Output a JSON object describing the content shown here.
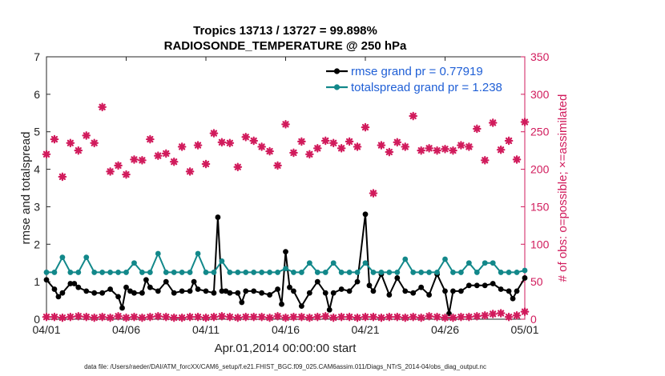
{
  "chart_data": {
    "type": "line",
    "title_line1": "Tropics 13713 / 13727 = 99.898%",
    "title_line2": "RADIOSONDE_TEMPERATURE @ 250 hPa",
    "xlabel": "Apr.01,2014 00:00:00 start",
    "ylabel_left": "rmse and totalspread",
    "ylabel_right": "# of obs: o=possible; ×=assimilated",
    "xlim": [
      0,
      30
    ],
    "ylim_left": [
      0,
      7
    ],
    "ylim_right": [
      0,
      350
    ],
    "x_ticks": [
      {
        "value": 0,
        "label": "04/01"
      },
      {
        "value": 5,
        "label": "04/06"
      },
      {
        "value": 10,
        "label": "04/11"
      },
      {
        "value": 15,
        "label": "04/16"
      },
      {
        "value": 20,
        "label": "04/21"
      },
      {
        "value": 25,
        "label": "04/26"
      },
      {
        "value": 30,
        "label": "05/01"
      }
    ],
    "y_ticks_left": [
      "0",
      "1",
      "2",
      "3",
      "4",
      "5",
      "6",
      "7"
    ],
    "y_ticks_right": [
      "0",
      "50",
      "100",
      "150",
      "200",
      "250",
      "300",
      "350"
    ],
    "series": [
      {
        "name": "rmse grand pr = 0.77919",
        "color": "#000000",
        "axis": "left",
        "x": [
          0,
          0.5,
          0.75,
          1,
          1.5,
          1.75,
          2,
          2.5,
          3,
          3.5,
          4,
          4.5,
          4.75,
          5,
          5.25,
          5.5,
          6,
          6.25,
          6.5,
          7,
          7.5,
          8,
          8.5,
          9,
          9.25,
          9.5,
          10,
          10.5,
          10.75,
          11,
          11.25,
          11.5,
          12,
          12.25,
          12.5,
          13,
          13.5,
          14,
          14.5,
          14.75,
          15,
          15.25,
          15.5,
          16,
          16.5,
          17,
          17.5,
          17.75,
          18,
          18.5,
          19,
          19.5,
          20,
          20.25,
          20.5,
          21,
          21.5,
          22,
          22.5,
          23,
          23.5,
          24,
          24.5,
          25,
          25.25,
          25.5,
          26,
          26.5,
          27,
          27.5,
          28,
          28.5,
          29,
          29.25,
          29.5,
          30
        ],
        "values": [
          1.05,
          0.8,
          0.6,
          0.7,
          0.95,
          0.95,
          0.85,
          0.75,
          0.7,
          0.7,
          0.8,
          0.6,
          0.3,
          0.85,
          0.75,
          0.7,
          0.7,
          1.05,
          0.85,
          0.75,
          1.0,
          0.7,
          0.75,
          0.75,
          1.0,
          0.8,
          0.75,
          0.7,
          2.72,
          0.75,
          0.75,
          0.7,
          0.7,
          0.45,
          0.75,
          0.75,
          0.7,
          0.65,
          0.8,
          0.4,
          1.8,
          0.85,
          0.75,
          0.35,
          0.7,
          1.0,
          0.7,
          0.25,
          0.7,
          0.8,
          0.75,
          1.0,
          2.8,
          0.9,
          0.75,
          1.2,
          0.65,
          1.1,
          0.75,
          0.7,
          0.85,
          0.65,
          1.2,
          0.75,
          0.15,
          0.75,
          0.75,
          0.9,
          0.9,
          0.9,
          0.95,
          0.8,
          0.75,
          0.55,
          0.75,
          1.1
        ]
      },
      {
        "name": "totalspread grand pr = 1.238",
        "color": "#12888a",
        "axis": "left",
        "x": [
          0,
          0.5,
          1,
          1.5,
          2,
          2.5,
          3,
          3.5,
          4,
          4.5,
          5,
          5.5,
          6,
          6.5,
          7,
          7.5,
          8,
          8.5,
          9,
          9.5,
          10,
          10.5,
          11,
          11.5,
          12,
          12.5,
          13,
          13.5,
          14,
          14.5,
          15,
          15.5,
          16,
          16.5,
          17,
          17.5,
          18,
          18.5,
          19,
          19.5,
          20,
          20.5,
          21,
          21.5,
          22,
          22.5,
          23,
          23.5,
          24,
          24.5,
          25,
          25.5,
          26,
          26.5,
          27,
          27.5,
          28,
          28.5,
          29,
          29.5,
          30
        ],
        "values": [
          1.25,
          1.25,
          1.65,
          1.25,
          1.25,
          1.65,
          1.25,
          1.25,
          1.25,
          1.25,
          1.25,
          1.5,
          1.25,
          1.25,
          1.75,
          1.25,
          1.25,
          1.25,
          1.25,
          1.75,
          1.25,
          1.25,
          1.55,
          1.25,
          1.25,
          1.25,
          1.25,
          1.25,
          1.25,
          1.25,
          1.35,
          1.25,
          1.25,
          1.5,
          1.25,
          1.25,
          1.5,
          1.25,
          1.25,
          1.25,
          1.5,
          1.25,
          1.25,
          1.25,
          1.25,
          1.6,
          1.25,
          1.25,
          1.25,
          1.25,
          1.6,
          1.25,
          1.25,
          1.5,
          1.25,
          1.5,
          1.5,
          1.25,
          1.25,
          1.25,
          1.3
        ]
      },
      {
        "name": "obs possible",
        "color": "#d11b5c",
        "axis": "right",
        "x": [
          0,
          0.5,
          1,
          1.5,
          2,
          2.5,
          3,
          3.5,
          4,
          4.5,
          5,
          5.5,
          6,
          6.5,
          7,
          7.5,
          8,
          8.5,
          9,
          9.5,
          10,
          10.5,
          11,
          11.5,
          12,
          12.5,
          13,
          13.5,
          14,
          14.5,
          15,
          15.5,
          16,
          16.5,
          17,
          17.5,
          18,
          18.5,
          19,
          19.5,
          20,
          20.5,
          21,
          21.5,
          22,
          22.5,
          23,
          23.5,
          24,
          24.5,
          25,
          25.5,
          26,
          26.5,
          27,
          27.5,
          28,
          28.5,
          29,
          29.5,
          30
        ],
        "values": [
          220,
          240,
          190,
          235,
          225,
          245,
          235,
          283,
          197,
          205,
          193,
          213,
          212,
          240,
          218,
          221,
          210,
          230,
          197,
          232,
          207,
          248,
          236,
          235,
          203,
          243,
          238,
          230,
          224,
          205,
          260,
          222,
          237,
          220,
          228,
          238,
          235,
          228,
          237,
          230,
          256,
          168,
          232,
          223,
          236,
          230,
          271,
          225,
          228,
          225,
          227,
          225,
          232,
          230,
          254,
          212,
          262,
          226,
          238,
          213,
          263
        ]
      },
      {
        "name": "obs assimilated",
        "color": "#d11b5c",
        "axis": "right",
        "x": [
          0,
          0.5,
          1,
          1.5,
          2,
          2.5,
          3,
          3.5,
          4,
          4.5,
          5,
          5.5,
          6,
          6.5,
          7,
          7.5,
          8,
          8.5,
          9,
          9.5,
          10,
          10.5,
          11,
          11.5,
          12,
          12.5,
          13,
          13.5,
          14,
          14.5,
          15,
          15.5,
          16,
          16.5,
          17,
          17.5,
          18,
          18.5,
          19,
          19.5,
          20,
          20.5,
          21,
          21.5,
          22,
          22.5,
          23,
          23.5,
          24,
          24.5,
          25,
          25.5,
          26,
          26.5,
          27,
          27.5,
          28,
          28.5,
          29,
          29.5,
          30
        ],
        "values": [
          3,
          3,
          2,
          3,
          4,
          3,
          2,
          3,
          2,
          4,
          2,
          3,
          2,
          3,
          4,
          3,
          2,
          2,
          3,
          3,
          2,
          3,
          4,
          3,
          2,
          3,
          3,
          3,
          2,
          4,
          2,
          3,
          3,
          2,
          3,
          4,
          2,
          3,
          3,
          2,
          3,
          3,
          2,
          3,
          3,
          2,
          3,
          2,
          4,
          3,
          2,
          2,
          3,
          3,
          4,
          5,
          7,
          8,
          3,
          5,
          10
        ]
      }
    ],
    "legend": {
      "placement": "top-right",
      "entries": [
        "rmse grand pr = 0.77919",
        "totalspread grand pr = 1.238"
      ]
    },
    "footnote": "data file: /Users/raeder/DAI/ATM_forcXX/CAM6_setup/f.e21.FHIST_BGC.f09_025.CAM6assim.011/Diags_NTrS_2014-04/obs_diag_output.nc"
  }
}
